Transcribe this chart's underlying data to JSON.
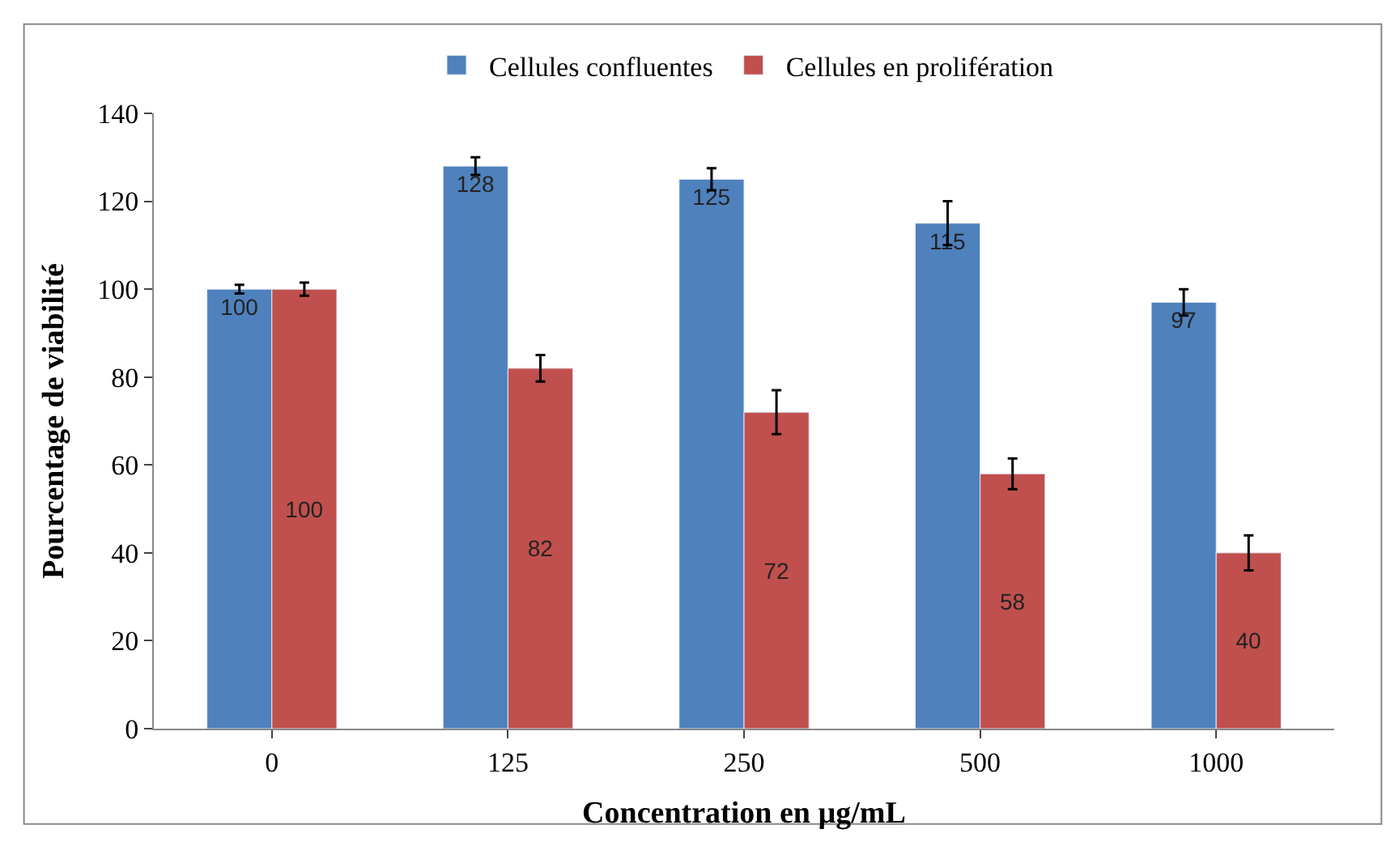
{
  "chart_data": {
    "type": "bar",
    "xlabel": "Concentration en µg/mL",
    "ylabel": "Pourcentage de viabilité",
    "categories": [
      "0",
      "125",
      "250",
      "500",
      "1000"
    ],
    "series": [
      {
        "name": "Cellules confluentes",
        "color": "#4f81bd",
        "values": [
          100,
          128,
          125,
          115,
          97
        ],
        "errors": [
          1,
          2,
          2.5,
          5,
          3
        ]
      },
      {
        "name": "Cellules en prolifération",
        "color": "#c0504d",
        "values": [
          100,
          82,
          72,
          58,
          40
        ],
        "errors": [
          1.5,
          3,
          5,
          3.5,
          4
        ]
      }
    ],
    "ylim": [
      0,
      140
    ],
    "yticks": [
      0,
      20,
      40,
      60,
      80,
      100,
      120,
      140
    ],
    "legend": "top",
    "data_labels": true
  }
}
